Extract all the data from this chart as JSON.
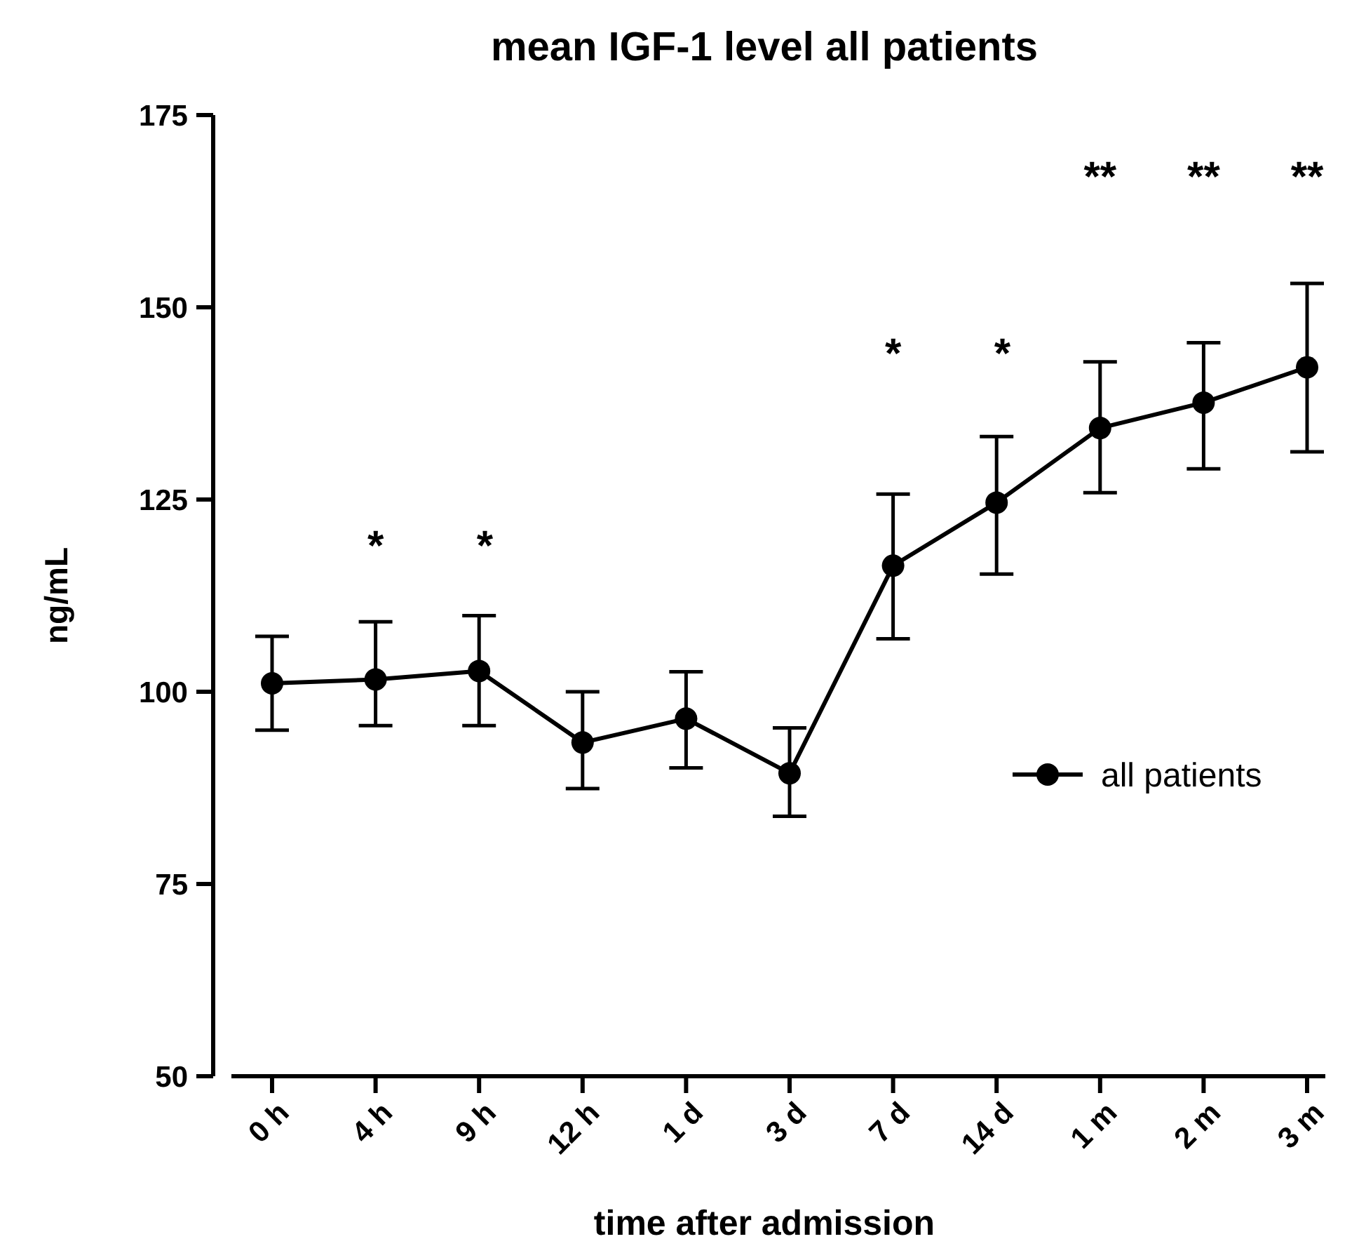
{
  "chart_data": {
    "type": "line",
    "title": "mean IGF-1 level all patients",
    "xlabel": "time after admission",
    "ylabel": "ng/mL",
    "categories": [
      "0 h",
      "4 h",
      "9 h",
      "12 h",
      "1 d",
      "3 d",
      "7 d",
      "14 d",
      "1 m",
      "2 m",
      "3 m"
    ],
    "series": [
      {
        "name": "all patients",
        "color": "#000000",
        "values": [
          101.1,
          101.6,
          102.7,
          93.4,
          96.5,
          89.4,
          116.4,
          124.6,
          134.3,
          137.6,
          142.2
        ],
        "errors": [
          [
            95.0,
            107.2
          ],
          [
            95.6,
            109.1
          ],
          [
            95.6,
            109.9
          ],
          [
            87.4,
            100
          ],
          [
            90.1,
            102.6
          ],
          [
            83.8,
            95.3
          ],
          [
            106.9,
            125.7
          ],
          [
            115.3,
            133.2
          ],
          [
            125.9,
            142.9
          ],
          [
            129.0,
            145.4
          ],
          [
            131.2,
            153.1
          ]
        ]
      }
    ],
    "ylim": [
      50,
      175
    ],
    "yticks": [
      50,
      75,
      100,
      125,
      150,
      175
    ],
    "grid": false,
    "legend": "right",
    "marker": "circle",
    "line_style": "solid",
    "annotations": [
      "* *",
      "* *",
      "**",
      "**",
      "**"
    ]
  }
}
